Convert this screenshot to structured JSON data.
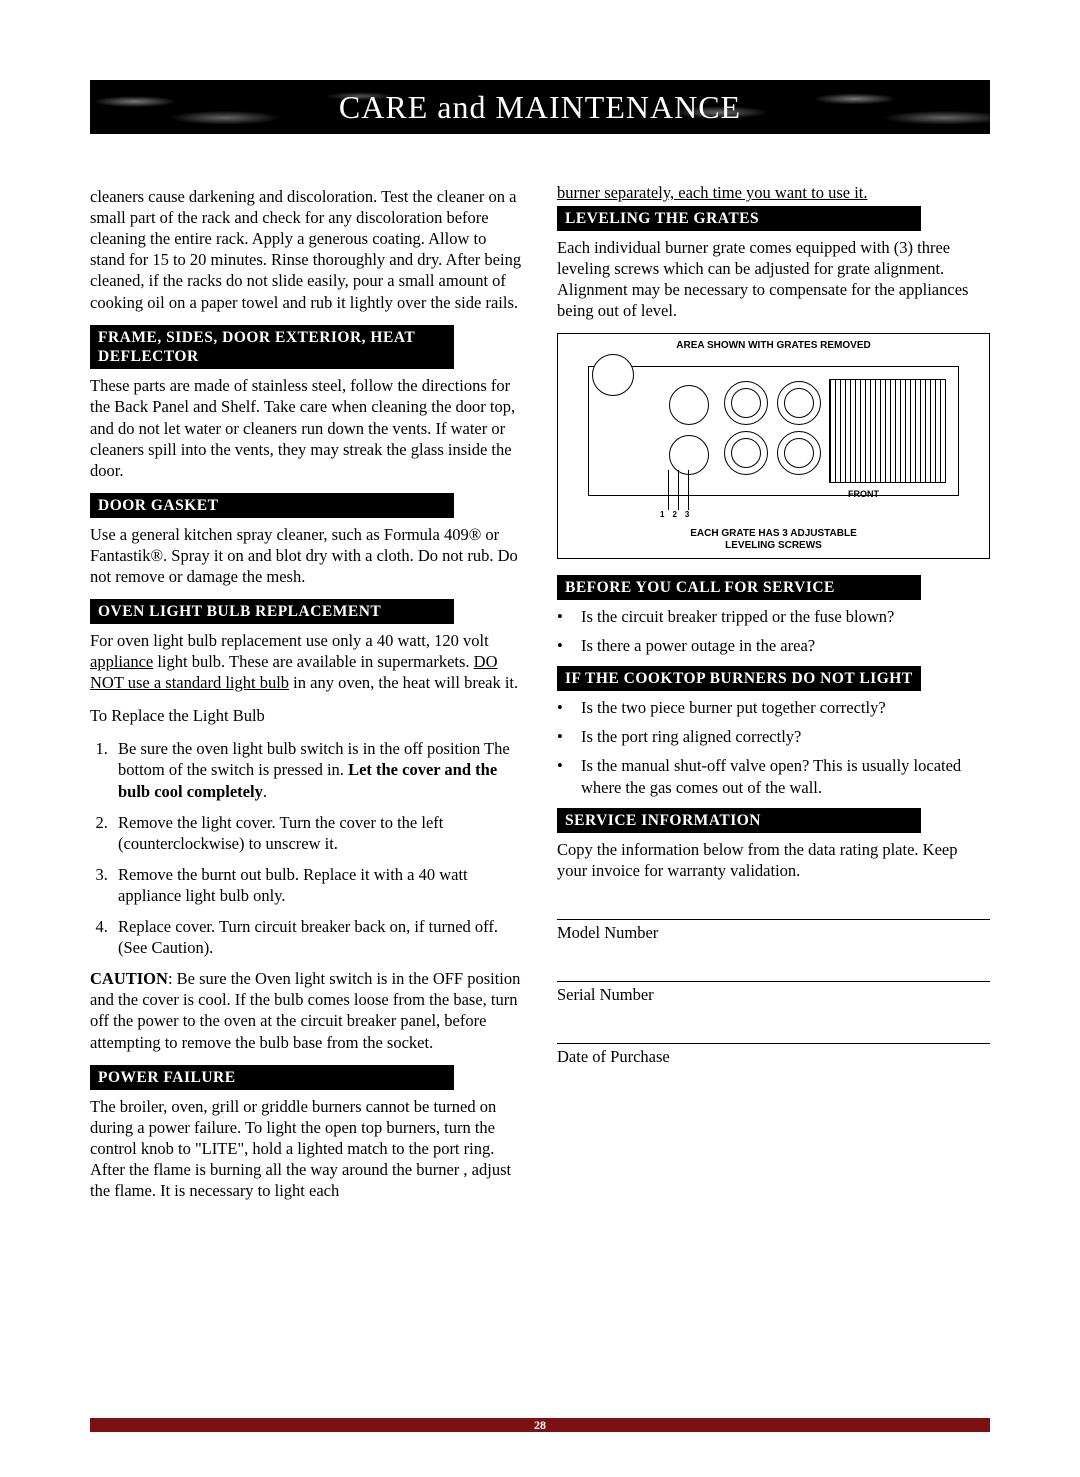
{
  "banner": {
    "title": "CARE and MAINTENANCE"
  },
  "footer": {
    "page_number": "28",
    "bar_color": "#7b1113"
  },
  "left": {
    "intro": "cleaners cause darkening and discoloration. Test the cleaner on a small part of the rack and check for any discoloration before cleaning the entire rack. Apply a  generous coating. Allow to stand for 15 to 20 minutes. Rinse thoroughly and dry. After being cleaned, if the racks do not slide easily, pour a small amount of cooking oil on a paper towel and rub it lightly over the side rails.",
    "frame": {
      "heading": "FRAME, SIDES, DOOR EXTERIOR, HEAT DEFLECTOR",
      "body": "These parts are made of stainless steel, follow the directions for the Back Panel and Shelf. Take care when cleaning the door top, and do not let water or cleaners run down the vents. If water or cleaners spill into the vents, they may streak the glass inside the door."
    },
    "gasket": {
      "heading": "DOOR GASKET",
      "body": "Use a general kitchen spray cleaner, such as Formula 409® or Fantastik®. Spray it on and blot dry with a cloth. Do not rub. Do not remove or damage the mesh."
    },
    "bulb": {
      "heading": "OVEN LIGHT BULB REPLACEMENT",
      "intro_a": "For oven light bulb replacement use only a 40 watt, 120 volt ",
      "intro_u1": "appliance",
      "intro_b": " light bulb. These are available in supermarkets. ",
      "intro_u2": "DO NOT use a standard light bulb",
      "intro_c": " in any oven, the heat will break it.",
      "subhead": "To Replace the Light Bulb",
      "step1_a": "Be sure the oven light bulb switch is in the off position The bottom of the switch is pressed in. ",
      "step1_bold": "Let the cover and the bulb cool completely",
      "step1_b": ".",
      "step2": "Remove the light cover. Turn the cover to the left (counterclockwise) to unscrew it.",
      "step3": "Remove the burnt out bulb. Replace it with a 40 watt appliance light bulb only.",
      "step4": "Replace cover. Turn circuit breaker back on, if turned off. (See Caution).",
      "caution_label": "CAUTION",
      "caution_body": ": Be sure the Oven light switch is in the OFF position and the cover is cool. If the bulb comes loose from the base, turn off the power to the oven at the circuit breaker panel, before attempting to remove the bulb base from the socket."
    },
    "power": {
      "heading": "POWER FAILURE",
      "body": "The broiler, oven, grill or griddle burners cannot be turned on during a power failure. To light the open top burners, turn the control knob to \"LITE\", hold a lighted match to the port ring. After the flame is burning all the way around the burner , adjust the flame. It is necessary to light each"
    }
  },
  "right": {
    "cont": "burner separately, each time you want to use it.",
    "leveling": {
      "heading": "LEVELING THE GRATES",
      "body": "Each individual burner grate comes equipped with (3) three leveling screws which can be adjusted for grate alignment. Alignment may be necessary to compensate for the appliances being out of level."
    },
    "diagram": {
      "top": "AREA SHOWN  WITH GRATES REMOVED",
      "front": "FRONT",
      "n1": "1",
      "n2": "2",
      "n3": "3",
      "bottom1": "EACH GRATE HAS 3 ADJUSTABLE",
      "bottom2": "LEVELING SCREWS"
    },
    "before": {
      "heading": "BEFORE YOU CALL FOR SERVICE",
      "b1": "Is the circuit breaker tripped or the fuse blown?",
      "b2": "Is there a power outage in the area?"
    },
    "cooktop": {
      "heading": "IF THE COOKTOP BURNERS DO NOT LIGHT",
      "b1": "Is the two piece burner put together correctly?",
      "b2": "Is the port ring aligned correctly?",
      "b3": "Is the manual shut-off valve open? This is usually located where the gas comes out of the wall."
    },
    "service": {
      "heading": "SERVICE INFORMATION",
      "body": "Copy the information below from the data rating plate. Keep your invoice for warranty validation.",
      "model": "Model Number",
      "serial": "Serial Number",
      "date": "Date of Purchase"
    }
  }
}
